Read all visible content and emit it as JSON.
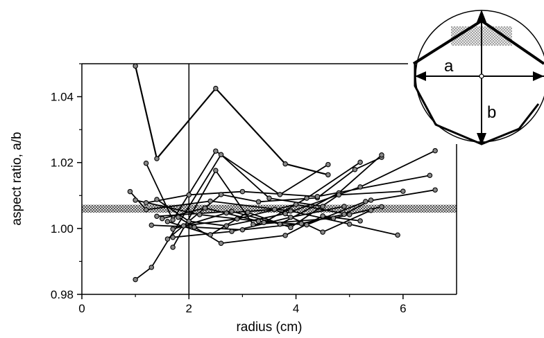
{
  "chart_data": {
    "type": "line",
    "xlabel": "radius (cm)",
    "ylabel": "aspect ratio, a/b",
    "xlim": [
      0,
      7
    ],
    "ylim": [
      0.98,
      1.05
    ],
    "xticks": [
      0,
      2,
      4,
      6
    ],
    "xtick_labels": [
      "0",
      "2",
      "4",
      "6"
    ],
    "yticks": [
      0.98,
      1.0,
      1.02,
      1.04
    ],
    "ytick_labels": [
      "0.98",
      "1.00",
      "1.02",
      "1.04"
    ],
    "band": {
      "y_min": 1.0048,
      "y_max": 1.0072
    },
    "reference_line_x": 2,
    "grid": false,
    "series": [
      {
        "x": [
          1.0,
          1.4,
          2.5,
          3.8,
          4.6
        ],
        "y": [
          1.0493,
          1.0212,
          1.0425,
          1.0196,
          1.0163
        ]
      },
      {
        "x": [
          1.2,
          1.7,
          2.5,
          3.7,
          4.6
        ],
        "y": [
          1.0198,
          1.0026,
          1.0235,
          1.0103,
          1.0194
        ]
      },
      {
        "x": [
          1.0,
          1.3,
          2.6,
          3.5,
          4.5
        ],
        "y": [
          0.9845,
          0.9882,
          1.0224,
          1.0092,
          1.0067
        ]
      },
      {
        "x": [
          0.9,
          1.2,
          2.4,
          3.9,
          5.0,
          5.9
        ],
        "y": [
          1.0112,
          1.0057,
          1.0083,
          1.0053,
          1.0013,
          0.998
        ]
      },
      {
        "x": [
          1.4,
          2.0,
          2.7,
          3.8,
          5.2,
          6.6
        ],
        "y": [
          1.0088,
          1.0022,
          1.0008,
          1.0045,
          1.0126,
          1.0236
        ]
      },
      {
        "x": [
          1.6,
          2.6,
          3.3,
          4.4,
          5.1,
          5.6
        ],
        "y": [
          0.9968,
          1.0103,
          1.0081,
          1.0093,
          1.0179,
          1.0216
        ]
      },
      {
        "x": [
          1.7,
          2.5,
          3.2,
          4.7,
          5.6
        ],
        "y": [
          0.9943,
          1.0176,
          1.0012,
          1.0031,
          1.0066
        ]
      },
      {
        "x": [
          1.4,
          2.8,
          3.7,
          4.8,
          5.6
        ],
        "y": [
          1.0037,
          1.0052,
          1.0013,
          1.0108,
          1.0223
        ]
      },
      {
        "x": [
          1.3,
          2.1,
          3.0,
          4.1,
          4.9,
          5.4
        ],
        "y": [
          1.001,
          1.0004,
          0.9996,
          1.0015,
          1.0043,
          1.0086
        ]
      },
      {
        "x": [
          1.5,
          2.3,
          3.4,
          4.2,
          5.2
        ],
        "y": [
          1.003,
          1.0062,
          1.0018,
          1.0092,
          1.0201
        ]
      },
      {
        "x": [
          1.8,
          2.6,
          3.8,
          4.5,
          5.2
        ],
        "y": [
          1.0034,
          0.9955,
          0.9979,
          1.0038,
          1.0023
        ]
      },
      {
        "x": [
          1.2,
          2.0,
          3.0,
          4.4,
          6.5
        ],
        "y": [
          1.0078,
          1.0102,
          1.0112,
          1.0097,
          1.0161
        ]
      },
      {
        "x": [
          1.6,
          2.4,
          3.1,
          3.9,
          4.8,
          6.0
        ],
        "y": [
          1.0021,
          0.9981,
          1.0049,
          1.0003,
          1.0102,
          1.0113
        ]
      },
      {
        "x": [
          1.7,
          2.7,
          3.6,
          4.5,
          5.4
        ],
        "y": [
          0.9998,
          1.0047,
          1.0058,
          0.9989,
          1.0055
        ]
      },
      {
        "x": [
          1.0,
          2.2,
          3.3,
          4.2,
          5.3,
          6.6
        ],
        "y": [
          1.0086,
          1.0042,
          1.0022,
          1.0011,
          1.0082,
          1.0117
        ]
      },
      {
        "x": [
          1.9,
          2.9,
          4.0,
          5.0
        ],
        "y": [
          1.0008,
          1.0029,
          1.0073,
          1.0042
        ]
      },
      {
        "x": [
          1.7,
          2.8,
          3.9,
          4.9
        ],
        "y": [
          0.9973,
          0.9991,
          1.0034,
          1.0067
        ]
      }
    ]
  },
  "inset": {
    "label_a": "a",
    "label_b": "b"
  }
}
